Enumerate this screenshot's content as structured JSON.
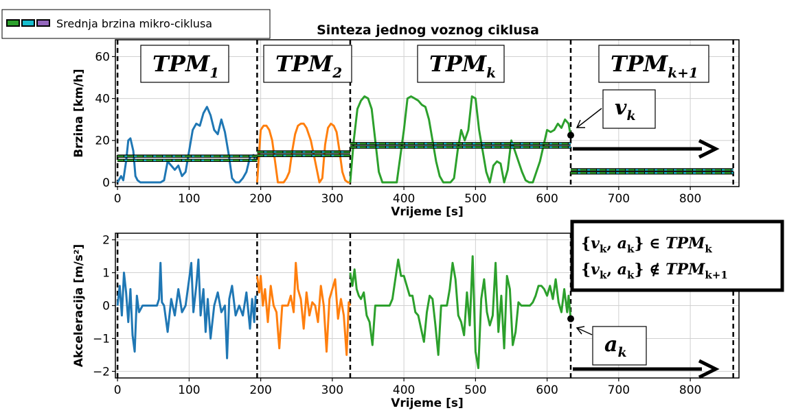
{
  "legend": {
    "label": "Srednja brzina mikro-ciklusa",
    "swatch_colors": [
      "#2ca02c",
      "#17becf",
      "#9467bd"
    ]
  },
  "chart_data": [
    {
      "type": "line",
      "title": "Sinteza jednog voznog ciklusa",
      "xlabel": "Vrijeme [s]",
      "ylabel": "Brzina [km/h]",
      "xlim": [
        -3,
        868
      ],
      "ylim": [
        -2,
        68
      ],
      "xticks": [
        0,
        100,
        200,
        300,
        400,
        500,
        600,
        700,
        800
      ],
      "yticks": [
        0,
        20,
        40,
        60
      ],
      "grid": true,
      "boundaries": [
        0,
        195,
        325,
        633,
        860
      ],
      "segment_labels": [
        {
          "base": "TPM",
          "sub": "1"
        },
        {
          "base": "TPM",
          "sub": "2"
        },
        {
          "base": "TPM",
          "sub": "k"
        },
        {
          "base": "TPM",
          "sub": "k+1"
        }
      ],
      "series": [
        {
          "color": "#1f77b4",
          "x": [
            0,
            5,
            8,
            12,
            15,
            18,
            22,
            25,
            28,
            32,
            40,
            50,
            60,
            65,
            70,
            75,
            80,
            85,
            90,
            95,
            100,
            105,
            110,
            115,
            120,
            125,
            130,
            135,
            140,
            145,
            150,
            155,
            160,
            165,
            170,
            175,
            180,
            185,
            190,
            193
          ],
          "values": [
            0,
            3,
            1,
            10,
            20,
            21,
            15,
            3,
            1,
            0,
            0,
            0,
            0,
            1,
            10,
            8,
            6,
            8,
            3,
            5,
            15,
            25,
            28,
            27,
            33,
            36,
            32,
            25,
            23,
            30,
            24,
            14,
            2,
            0,
            0,
            2,
            5,
            12,
            13,
            10
          ]
        },
        {
          "color": "#ff7f0e",
          "x": [
            195,
            198,
            200,
            204,
            208,
            212,
            216,
            220,
            224,
            228,
            232,
            236,
            240,
            244,
            248,
            252,
            256,
            260,
            264,
            270,
            276,
            282,
            286,
            290,
            294,
            298,
            302,
            306,
            310,
            314,
            318,
            322,
            325
          ],
          "values": [
            0,
            15,
            25,
            27,
            27,
            25,
            20,
            10,
            0,
            0,
            0,
            2,
            5,
            15,
            23,
            27,
            28,
            28,
            26,
            20,
            10,
            0,
            2,
            18,
            26,
            28,
            27,
            24,
            15,
            5,
            1,
            0,
            0
          ]
        },
        {
          "color": "#2ca02c",
          "x": [
            325,
            330,
            335,
            340,
            345,
            350,
            355,
            360,
            365,
            370,
            375,
            380,
            390,
            400,
            405,
            410,
            415,
            420,
            425,
            430,
            435,
            440,
            445,
            450,
            455,
            460,
            465,
            470,
            475,
            480,
            485,
            490,
            495,
            500,
            505,
            510,
            515,
            520,
            525,
            530,
            535,
            540,
            545,
            550,
            555,
            560,
            565,
            570,
            575,
            580,
            590,
            600,
            605,
            610,
            615,
            620,
            625,
            630,
            633
          ],
          "values": [
            0,
            20,
            35,
            39,
            41,
            40,
            35,
            20,
            5,
            0,
            0,
            0,
            0,
            25,
            40,
            41,
            40,
            39,
            37,
            36,
            30,
            20,
            10,
            3,
            0,
            0,
            0,
            2,
            15,
            25,
            20,
            25,
            41,
            40,
            25,
            15,
            5,
            0,
            8,
            10,
            9,
            0,
            6,
            20,
            15,
            10,
            5,
            1,
            0,
            0,
            10,
            25,
            24,
            25,
            28,
            26,
            30,
            28,
            22
          ]
        }
      ],
      "mean_lines": [
        {
          "x0": 0,
          "x1": 195,
          "y_upper": 12.5,
          "y_lower": 10.5
        },
        {
          "x0": 195,
          "x1": 325,
          "y_upper": 14.5,
          "y_lower": 12.8
        },
        {
          "x0": 325,
          "x1": 633,
          "y_upper": 18.5,
          "y_lower": 16.8
        },
        {
          "x0": 633,
          "x1": 860,
          "y_upper": 6,
          "y_lower": 4.5
        }
      ],
      "marker": {
        "x": 633,
        "y": 22.5,
        "label_base": "v",
        "label_sub": "k"
      }
    },
    {
      "type": "line",
      "xlabel": "Vrijeme [s]",
      "ylabel": "Akceleracija [m/s²]",
      "xlim": [
        -3,
        868
      ],
      "ylim": [
        -2.2,
        2.2
      ],
      "xticks": [
        0,
        100,
        200,
        300,
        400,
        500,
        600,
        700,
        800
      ],
      "yticks": [
        -2,
        -1,
        0,
        1,
        2
      ],
      "grid": true,
      "boundaries": [
        0,
        195,
        325,
        633,
        860
      ],
      "series": [
        {
          "color": "#1f77b4",
          "x": [
            0,
            3,
            6,
            9,
            12,
            15,
            18,
            21,
            24,
            27,
            30,
            35,
            40,
            45,
            50,
            55,
            58,
            60,
            62,
            65,
            70,
            75,
            80,
            85,
            90,
            95,
            100,
            103,
            106,
            110,
            113,
            116,
            120,
            123,
            126,
            130,
            135,
            140,
            145,
            150,
            153,
            156,
            160,
            165,
            170,
            175,
            180,
            185,
            188,
            191,
            193
          ],
          "values": [
            0,
            0.6,
            -0.3,
            1,
            0.4,
            -0.5,
            0.5,
            -0.9,
            -1.4,
            0.3,
            -0.2,
            0,
            0,
            0,
            0,
            0,
            0.2,
            1.3,
            0.1,
            0,
            -0.8,
            0.2,
            -0.3,
            0.5,
            -0.2,
            0,
            0.8,
            1.3,
            -0.2,
            0.6,
            1.4,
            -0.3,
            0.5,
            -0.8,
            0.2,
            -1,
            0,
            0.4,
            -0.2,
            0,
            -1.6,
            0.2,
            0.6,
            -0.3,
            0,
            -0.3,
            0.4,
            -0.7,
            0.2,
            -0.5,
            0.3
          ]
        },
        {
          "color": "#ff7f0e",
          "x": [
            195,
            198,
            200,
            203,
            206,
            210,
            214,
            218,
            222,
            226,
            230,
            234,
            238,
            242,
            246,
            249,
            252,
            256,
            260,
            264,
            268,
            272,
            276,
            280,
            284,
            288,
            292,
            296,
            300,
            304,
            308,
            312,
            316,
            320,
            323,
            325
          ],
          "values": [
            0.9,
            0.4,
            0.9,
            0,
            0.5,
            -0.5,
            0.6,
            0,
            -0.2,
            -1.3,
            0,
            0,
            0,
            0.3,
            -0.2,
            1.3,
            0.5,
            0.2,
            -0.7,
            0.4,
            -0.3,
            0.1,
            0,
            -0.5,
            0.6,
            0,
            -1.4,
            0.2,
            0.5,
            0.8,
            -0.4,
            0.2,
            -0.3,
            -1.5,
            0.1,
            0
          ]
        },
        {
          "color": "#2ca02c",
          "x": [
            325,
            328,
            331,
            334,
            337,
            340,
            344,
            348,
            352,
            356,
            360,
            364,
            368,
            372,
            376,
            380,
            384,
            388,
            392,
            396,
            400,
            404,
            408,
            412,
            416,
            420,
            424,
            428,
            432,
            436,
            440,
            444,
            448,
            452,
            456,
            460,
            464,
            468,
            472,
            476,
            480,
            484,
            488,
            492,
            496,
            500,
            504,
            508,
            512,
            516,
            520,
            524,
            528,
            532,
            536,
            540,
            544,
            548,
            552,
            556,
            560,
            564,
            568,
            572,
            576,
            580,
            584,
            588,
            592,
            596,
            600,
            604,
            608,
            612,
            616,
            620,
            624,
            628,
            630,
            633
          ],
          "values": [
            1,
            0.6,
            1.1,
            0.5,
            0.3,
            0.2,
            0.4,
            -0.3,
            -0.5,
            -1.2,
            0,
            0,
            0,
            0,
            0,
            0,
            0.2,
            0.8,
            1.4,
            0.9,
            0.9,
            0.6,
            0.3,
            0.3,
            -0.2,
            -0.3,
            -0.7,
            -1.1,
            -0.2,
            0.3,
            0.2,
            -0.6,
            -1.5,
            0,
            0,
            0,
            0.5,
            1.3,
            0.8,
            -0.3,
            -0.5,
            -0.9,
            0.4,
            -0.6,
            1.5,
            -1.4,
            -1.9,
            0.2,
            0.8,
            -0.2,
            -0.6,
            -0.3,
            1.3,
            -0.8,
            0.3,
            -1.3,
            0.9,
            0.5,
            -1.2,
            -0.8,
            0.1,
            0,
            0,
            0,
            0,
            0.1,
            0.3,
            0.6,
            0.6,
            0.5,
            0.3,
            0.6,
            0.2,
            0.8,
            0.1,
            -0.2,
            0.5,
            -0.2,
            0.3,
            -0.4
          ]
        }
      ],
      "marker": {
        "x": 633,
        "y": -0.4,
        "label_base": "a",
        "label_sub": "k"
      },
      "annotation": {
        "lines": [
          "{v_k, a_k} ∈ TPM_k",
          "{v_k, a_k} ∉ TPM_k+1"
        ]
      }
    }
  ],
  "set_box": {
    "line1": {
      "open": "{",
      "v": "v",
      "v_sub": "k",
      "comma": ", ",
      "a": "a",
      "a_sub": "k",
      "close": "}",
      "op": " ∈ ",
      "base": "TPM",
      "sub": "k"
    },
    "line2": {
      "open": "{",
      "v": "v",
      "v_sub": "k",
      "comma": ", ",
      "a": "a",
      "a_sub": "k",
      "close": "}",
      "op": " ∉ ",
      "base": "TPM",
      "sub": "k+1"
    }
  }
}
